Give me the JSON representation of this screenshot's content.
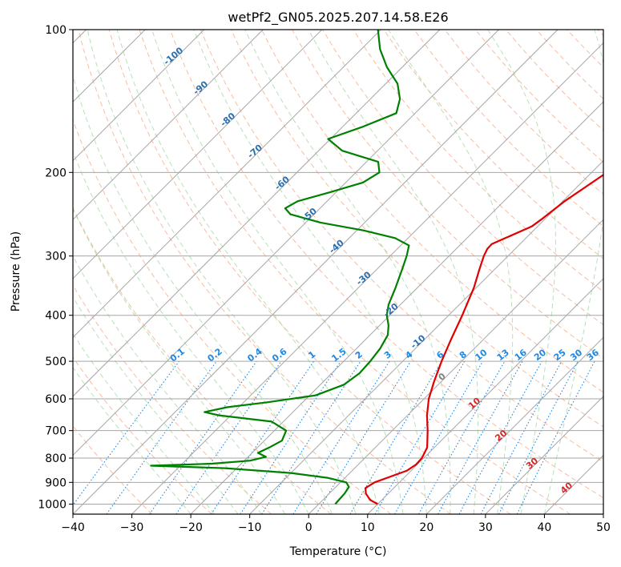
{
  "chart_data": {
    "type": "line",
    "subtype": "skew-t log-p diagram",
    "title": "wetPf2_GN05.2025.207.14.58.E26",
    "xlabel": "Temperature (°C)",
    "ylabel": "Pressure (hPa)",
    "xlim": [
      -40,
      50
    ],
    "ylim": [
      1050,
      100
    ],
    "y_scale": "log",
    "x_ticks": [
      "−40",
      "−30",
      "−20",
      "−10",
      "0",
      "10",
      "20",
      "30",
      "40",
      "50"
    ],
    "y_ticks": [
      "100",
      "200",
      "300",
      "400",
      "500",
      "600",
      "700",
      "800",
      "900",
      "1000"
    ],
    "grid": true,
    "skewed_isotherm_labels": [
      "-100",
      "-90",
      "-80",
      "-70",
      "-60",
      "-50",
      "-40",
      "-30",
      "-20",
      "-10",
      "0",
      "10",
      "20",
      "30",
      "40"
    ],
    "mixing_ratio_labels": [
      "0.1",
      "0.2",
      "0.4",
      "0.6",
      "1",
      "1.5",
      "2",
      "3",
      "4",
      "6",
      "8",
      "10",
      "13",
      "16",
      "20",
      "25",
      "30",
      "36"
    ],
    "colors": {
      "temperature": "#e00000",
      "dewpoint": "#008000",
      "isotherm_grid": "#a6a6a6",
      "dry_adiabat": "#f4a582",
      "moist_adiabat": "#a6d8a6",
      "mixing_ratio": "#1e88e5",
      "isotherm_label_blue": "#2a6fb0",
      "isotherm_label_red": "#d62728",
      "isotherm_label_zero": "#808080"
    },
    "series": [
      {
        "name": "temperature",
        "points": [
          {
            "p": 1000,
            "t": 10.0
          },
          {
            "p": 980,
            "t": 8.0
          },
          {
            "p": 950,
            "t": 6.2
          },
          {
            "p": 925,
            "t": 5.2
          },
          {
            "p": 900,
            "t": 5.8
          },
          {
            "p": 875,
            "t": 7.5
          },
          {
            "p": 850,
            "t": 9.3
          },
          {
            "p": 825,
            "t": 9.8
          },
          {
            "p": 800,
            "t": 9.7
          },
          {
            "p": 760,
            "t": 8.8
          },
          {
            "p": 700,
            "t": 6.0
          },
          {
            "p": 650,
            "t": 3.3
          },
          {
            "p": 600,
            "t": 0.8
          },
          {
            "p": 550,
            "t": -1.3
          },
          {
            "p": 500,
            "t": -3.4
          },
          {
            "p": 450,
            "t": -5.5
          },
          {
            "p": 400,
            "t": -7.7
          },
          {
            "p": 350,
            "t": -10.4
          },
          {
            "p": 320,
            "t": -12.6
          },
          {
            "p": 300,
            "t": -14.1
          },
          {
            "p": 290,
            "t": -14.7
          },
          {
            "p": 283,
            "t": -14.8
          },
          {
            "p": 275,
            "t": -13.5
          },
          {
            "p": 260,
            "t": -11.0
          },
          {
            "p": 250,
            "t": -10.5
          },
          {
            "p": 230,
            "t": -9.7
          },
          {
            "p": 210,
            "t": -8.2
          },
          {
            "p": 200,
            "t": -7.4
          },
          {
            "p": 185,
            "t": -6.2
          },
          {
            "p": 170,
            "t": -5.8
          },
          {
            "p": 155,
            "t": -5.6
          },
          {
            "p": 145,
            "t": -5.9
          },
          {
            "p": 135,
            "t": -5.5
          },
          {
            "p": 125,
            "t": -5.3
          },
          {
            "p": 115,
            "t": -5.6
          },
          {
            "p": 100,
            "t": -6.6
          }
        ]
      },
      {
        "name": "dewpoint",
        "points": [
          {
            "p": 1000,
            "t": 2.8
          },
          {
            "p": 975,
            "t": 2.7
          },
          {
            "p": 950,
            "t": 2.6
          },
          {
            "p": 920,
            "t": 2.2
          },
          {
            "p": 900,
            "t": 1.0
          },
          {
            "p": 880,
            "t": -3.0
          },
          {
            "p": 860,
            "t": -10.0
          },
          {
            "p": 840,
            "t": -22.0
          },
          {
            "p": 830,
            "t": -35.0
          },
          {
            "p": 822,
            "t": -25.0
          },
          {
            "p": 810,
            "t": -19.0
          },
          {
            "p": 795,
            "t": -17.0
          },
          {
            "p": 780,
            "t": -19.0
          },
          {
            "p": 760,
            "t": -18.0
          },
          {
            "p": 735,
            "t": -17.0
          },
          {
            "p": 700,
            "t": -18.0
          },
          {
            "p": 670,
            "t": -22.0
          },
          {
            "p": 650,
            "t": -32.0
          },
          {
            "p": 640,
            "t": -35.0
          },
          {
            "p": 625,
            "t": -32.0
          },
          {
            "p": 610,
            "t": -26.0
          },
          {
            "p": 590,
            "t": -19.0
          },
          {
            "p": 560,
            "t": -16.0
          },
          {
            "p": 530,
            "t": -15.3
          },
          {
            "p": 500,
            "t": -15.5
          },
          {
            "p": 470,
            "t": -16.0
          },
          {
            "p": 440,
            "t": -17.0
          },
          {
            "p": 420,
            "t": -18.5
          },
          {
            "p": 400,
            "t": -20.5
          },
          {
            "p": 380,
            "t": -22.0
          },
          {
            "p": 350,
            "t": -23.7
          },
          {
            "p": 320,
            "t": -25.7
          },
          {
            "p": 300,
            "t": -27.2
          },
          {
            "p": 285,
            "t": -28.6
          },
          {
            "p": 275,
            "t": -32.2
          },
          {
            "p": 265,
            "t": -38.8
          },
          {
            "p": 255,
            "t": -47.5
          },
          {
            "p": 245,
            "t": -54.0
          },
          {
            "p": 238,
            "t": -55.9
          },
          {
            "p": 230,
            "t": -55.0
          },
          {
            "p": 220,
            "t": -51.0
          },
          {
            "p": 210,
            "t": -47.1
          },
          {
            "p": 200,
            "t": -46.0
          },
          {
            "p": 190,
            "t": -48.0
          },
          {
            "p": 180,
            "t": -56.0
          },
          {
            "p": 170,
            "t": -60.4
          },
          {
            "p": 160,
            "t": -56.5
          },
          {
            "p": 150,
            "t": -53.2
          },
          {
            "p": 140,
            "t": -55.0
          },
          {
            "p": 130,
            "t": -58.0
          },
          {
            "p": 120,
            "t": -62.6
          },
          {
            "p": 110,
            "t": -66.8
          },
          {
            "p": 100,
            "t": -70.5
          }
        ]
      }
    ]
  }
}
